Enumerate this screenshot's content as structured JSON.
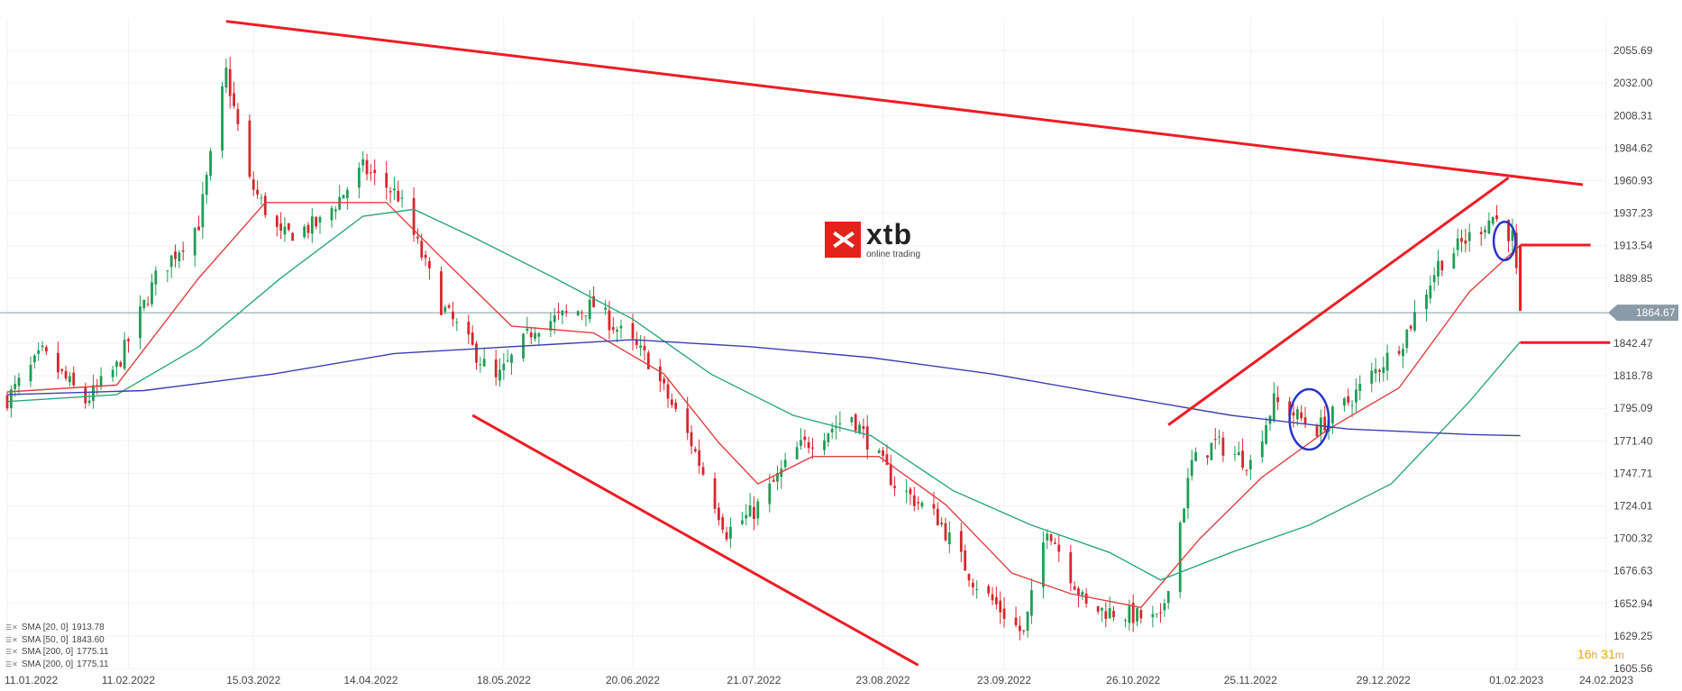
{
  "chart_data": {
    "type": "candlestick",
    "y_ticks": [
      "2055.69",
      "2032.00",
      "2008.31",
      "1984.62",
      "1960.93",
      "1937.23",
      "1913.54",
      "1889.85",
      "1864.67",
      "1842.47",
      "1818.78",
      "1795.09",
      "1771.40",
      "1747.71",
      "1724.01",
      "1700.32",
      "1676.63",
      "1652.94",
      "1629.25",
      "1605.56"
    ],
    "ylim": [
      1605.56,
      2079.38
    ],
    "x_ticks": [
      "11.01.2022",
      "11.02.2022",
      "15.03.2022",
      "14.04.2022",
      "18.05.2022",
      "20.06.2022",
      "21.07.2022",
      "23.08.2022",
      "23.09.2022",
      "26.10.2022",
      "25.11.2022",
      "29.12.2022",
      "01.02.2023",
      "24.02.2023"
    ],
    "current_price": "1864.67",
    "close_path": [
      {
        "date": "2022-01-11",
        "value": 1802
      },
      {
        "date": "2022-01-20",
        "value": 1835
      },
      {
        "date": "2022-01-31",
        "value": 1800
      },
      {
        "date": "2022-02-08",
        "value": 1825
      },
      {
        "date": "2022-02-18",
        "value": 1890
      },
      {
        "date": "2022-03-01",
        "value": 1930
      },
      {
        "date": "2022-03-08",
        "value": 2040
      },
      {
        "date": "2022-03-14",
        "value": 1960
      },
      {
        "date": "2022-03-22",
        "value": 1920
      },
      {
        "date": "2022-04-01",
        "value": 1930
      },
      {
        "date": "2022-04-12",
        "value": 1970
      },
      {
        "date": "2022-04-21",
        "value": 1950
      },
      {
        "date": "2022-05-02",
        "value": 1870
      },
      {
        "date": "2022-05-16",
        "value": 1815
      },
      {
        "date": "2022-05-26",
        "value": 1855
      },
      {
        "date": "2022-06-10",
        "value": 1870
      },
      {
        "date": "2022-06-24",
        "value": 1830
      },
      {
        "date": "2022-07-05",
        "value": 1770
      },
      {
        "date": "2022-07-14",
        "value": 1705
      },
      {
        "date": "2022-07-21",
        "value": 1720
      },
      {
        "date": "2022-08-01",
        "value": 1765
      },
      {
        "date": "2022-08-15",
        "value": 1790
      },
      {
        "date": "2022-08-26",
        "value": 1740
      },
      {
        "date": "2022-09-06",
        "value": 1715
      },
      {
        "date": "2022-09-15",
        "value": 1670
      },
      {
        "date": "2022-09-28",
        "value": 1630
      },
      {
        "date": "2022-10-04",
        "value": 1710
      },
      {
        "date": "2022-10-14",
        "value": 1650
      },
      {
        "date": "2022-10-24",
        "value": 1645
      },
      {
        "date": "2022-11-02",
        "value": 1640
      },
      {
        "date": "2022-11-10",
        "value": 1755
      },
      {
        "date": "2022-11-16",
        "value": 1770
      },
      {
        "date": "2022-11-25",
        "value": 1755
      },
      {
        "date": "2022-12-01",
        "value": 1800
      },
      {
        "date": "2022-12-12",
        "value": 1780
      },
      {
        "date": "2022-12-20",
        "value": 1800
      },
      {
        "date": "2023-01-03",
        "value": 1845
      },
      {
        "date": "2023-01-12",
        "value": 1900
      },
      {
        "date": "2023-01-20",
        "value": 1920
      },
      {
        "date": "2023-01-26",
        "value": 1935
      },
      {
        "date": "2023-01-31",
        "value": 1920
      },
      {
        "date": "2023-02-02",
        "value": 1864.67
      }
    ],
    "series": [
      {
        "name": "SMA [20, 0]",
        "last": "1913.78",
        "color": "#e04040",
        "points": [
          {
            "date": "2022-01-11",
            "value": 1807
          },
          {
            "date": "2022-02-08",
            "value": 1812
          },
          {
            "date": "2022-03-01",
            "value": 1890
          },
          {
            "date": "2022-03-18",
            "value": 1945
          },
          {
            "date": "2022-04-01",
            "value": 1945
          },
          {
            "date": "2022-04-18",
            "value": 1945
          },
          {
            "date": "2022-05-02",
            "value": 1905
          },
          {
            "date": "2022-05-20",
            "value": 1855
          },
          {
            "date": "2022-06-10",
            "value": 1850
          },
          {
            "date": "2022-06-28",
            "value": 1820
          },
          {
            "date": "2022-07-12",
            "value": 1770
          },
          {
            "date": "2022-07-22",
            "value": 1740
          },
          {
            "date": "2022-08-05",
            "value": 1760
          },
          {
            "date": "2022-08-22",
            "value": 1760
          },
          {
            "date": "2022-09-08",
            "value": 1725
          },
          {
            "date": "2022-09-25",
            "value": 1675
          },
          {
            "date": "2022-10-10",
            "value": 1660
          },
          {
            "date": "2022-10-28",
            "value": 1650
          },
          {
            "date": "2022-11-12",
            "value": 1700
          },
          {
            "date": "2022-11-28",
            "value": 1745
          },
          {
            "date": "2022-12-15",
            "value": 1780
          },
          {
            "date": "2023-01-02",
            "value": 1810
          },
          {
            "date": "2023-01-20",
            "value": 1880
          },
          {
            "date": "2023-02-02",
            "value": 1913.78
          }
        ]
      },
      {
        "name": "SMA [50, 0]",
        "last": "1843.60",
        "color": "#2aa876",
        "points": [
          {
            "date": "2022-01-11",
            "value": 1800
          },
          {
            "date": "2022-02-08",
            "value": 1805
          },
          {
            "date": "2022-03-01",
            "value": 1840
          },
          {
            "date": "2022-03-22",
            "value": 1890
          },
          {
            "date": "2022-04-12",
            "value": 1935
          },
          {
            "date": "2022-04-25",
            "value": 1940
          },
          {
            "date": "2022-05-10",
            "value": 1920
          },
          {
            "date": "2022-05-31",
            "value": 1890
          },
          {
            "date": "2022-06-20",
            "value": 1860
          },
          {
            "date": "2022-07-10",
            "value": 1820
          },
          {
            "date": "2022-07-31",
            "value": 1790
          },
          {
            "date": "2022-08-20",
            "value": 1775
          },
          {
            "date": "2022-09-10",
            "value": 1735
          },
          {
            "date": "2022-09-30",
            "value": 1710
          },
          {
            "date": "2022-10-20",
            "value": 1690
          },
          {
            "date": "2022-11-02",
            "value": 1670
          },
          {
            "date": "2022-11-20",
            "value": 1690
          },
          {
            "date": "2022-12-10",
            "value": 1710
          },
          {
            "date": "2022-12-31",
            "value": 1740
          },
          {
            "date": "2023-01-20",
            "value": 1800
          },
          {
            "date": "2023-02-02",
            "value": 1843.6
          }
        ]
      },
      {
        "name": "SMA [200, 0]",
        "last": "1775.11",
        "color": "#3b3eb0",
        "points": [
          {
            "date": "2022-01-11",
            "value": 1805
          },
          {
            "date": "2022-02-15",
            "value": 1808
          },
          {
            "date": "2022-03-20",
            "value": 1820
          },
          {
            "date": "2022-04-20",
            "value": 1835
          },
          {
            "date": "2022-05-20",
            "value": 1840
          },
          {
            "date": "2022-06-20",
            "value": 1845
          },
          {
            "date": "2022-07-20",
            "value": 1840
          },
          {
            "date": "2022-08-20",
            "value": 1832
          },
          {
            "date": "2022-09-20",
            "value": 1820
          },
          {
            "date": "2022-10-20",
            "value": 1805
          },
          {
            "date": "2022-11-20",
            "value": 1790
          },
          {
            "date": "2022-12-20",
            "value": 1780
          },
          {
            "date": "2023-01-20",
            "value": 1776
          },
          {
            "date": "2023-02-02",
            "value": 1775.11
          }
        ]
      },
      {
        "name": "SMA [200, 0]",
        "last": "1775.11",
        "color": "#3b3eb0",
        "points": []
      }
    ],
    "trendlines": [
      {
        "from": {
          "date": "2022-03-08",
          "value": 2077
        },
        "to": {
          "date": "2023-02-18",
          "value": 1958
        }
      },
      {
        "from": {
          "date": "2022-05-10",
          "value": 1790
        },
        "to": {
          "date": "2022-09-01",
          "value": 1608
        }
      },
      {
        "from": {
          "date": "2022-11-04",
          "value": 1783
        },
        "to": {
          "date": "2023-01-30",
          "value": 1963
        }
      },
      {
        "from": {
          "date": "2023-02-02",
          "value": 1914
        },
        "to": {
          "date": "2023-02-20",
          "value": 1914
        }
      },
      {
        "from": {
          "date": "2023-02-02",
          "value": 1843
        },
        "to": {
          "date": "2023-02-25",
          "value": 1843
        }
      },
      {
        "from": {
          "date": "2023-02-02",
          "value": 1914
        },
        "to": {
          "date": "2023-02-02",
          "value": 1866
        }
      }
    ],
    "circles": [
      {
        "date": "2022-12-10",
        "value": 1787,
        "date_radius_days": 5,
        "value_radius": 22
      },
      {
        "date": "2023-01-29",
        "value": 1917,
        "date_radius_days": 2.8,
        "value_radius": 14
      }
    ],
    "timer": {
      "h": "16",
      "h_unit": "h",
      "m": "31",
      "m_unit": "m"
    }
  },
  "logo": {
    "word": "xtb",
    "sub": "online trading"
  },
  "legend_icon": "settings-icon"
}
